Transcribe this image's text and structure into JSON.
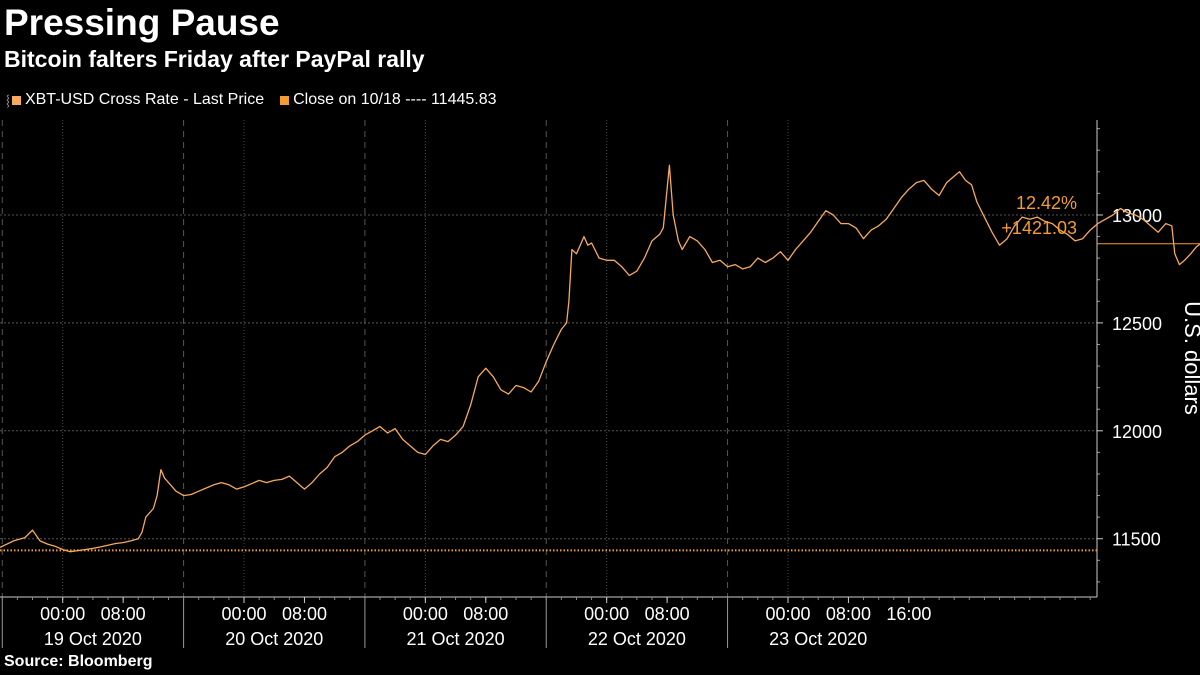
{
  "header": {
    "title": "Pressing Pause",
    "subtitle": "Bitcoin falters Friday after PayPal rally"
  },
  "legend": {
    "items": [
      {
        "label": "XBT-USD Cross Rate - Last Price",
        "color": "#f7a95c"
      },
      {
        "label": "Close on 10/18 ---- 11445.83",
        "color": "#f39c32"
      }
    ]
  },
  "source": "Source: Bloomberg",
  "chart_data": {
    "type": "line",
    "ylabel": "U.S. dollars",
    "ylim": [
      11230,
      13440
    ],
    "yticks": [
      11500,
      12000,
      12500,
      13000
    ],
    "xlim_hours": [
      -8.3,
      136.9
    ],
    "x_ticks": [
      {
        "hour": 0,
        "label": "00:00"
      },
      {
        "hour": 8,
        "label": "08:00"
      },
      {
        "hour": 24,
        "label": "00:00"
      },
      {
        "hour": 32,
        "label": "08:00"
      },
      {
        "hour": 48,
        "label": "00:00"
      },
      {
        "hour": 56,
        "label": "08:00"
      },
      {
        "hour": 72,
        "label": "00:00"
      },
      {
        "hour": 80,
        "label": "08:00"
      },
      {
        "hour": 96,
        "label": "00:00"
      },
      {
        "hour": 104,
        "label": "08:00"
      },
      {
        "hour": 112,
        "label": "16:00"
      }
    ],
    "day_labels": [
      {
        "hour": 4,
        "label": "19 Oct 2020"
      },
      {
        "hour": 28,
        "label": "20 Oct 2020"
      },
      {
        "hour": 52,
        "label": "21 Oct 2020"
      },
      {
        "hour": 76,
        "label": "22 Oct 2020"
      },
      {
        "hour": 100,
        "label": "23 Oct 2020"
      }
    ],
    "day_separators_hours": [
      -8,
      16,
      40,
      64,
      88
    ],
    "reference_line": {
      "label": "Close on 10/18",
      "value": 11445.83,
      "color": "#f39c32"
    },
    "annotation": {
      "pct": "12.42%",
      "change": "+1421.03",
      "last_value": 12866.86,
      "color": "#f39c32"
    },
    "series": [
      {
        "name": "XBT-USD Cross Rate - Last Price",
        "color": "#f7a95c",
        "points": [
          [
            -8.3,
            11460
          ],
          [
            -6.5,
            11490
          ],
          [
            -5,
            11505
          ],
          [
            -4,
            11540
          ],
          [
            -3,
            11490
          ],
          [
            -2,
            11475
          ],
          [
            -1,
            11465
          ],
          [
            0,
            11450
          ],
          [
            1,
            11440
          ],
          [
            2,
            11445
          ],
          [
            3,
            11450
          ],
          [
            4,
            11455
          ],
          [
            5,
            11462
          ],
          [
            6,
            11470
          ],
          [
            7,
            11478
          ],
          [
            8,
            11482
          ],
          [
            9,
            11490
          ],
          [
            10,
            11500
          ],
          [
            10.5,
            11530
          ],
          [
            11,
            11600
          ],
          [
            11.5,
            11620
          ],
          [
            12,
            11640
          ],
          [
            12.5,
            11700
          ],
          [
            13,
            11820
          ],
          [
            13.5,
            11780
          ],
          [
            14,
            11760
          ],
          [
            15,
            11720
          ],
          [
            16,
            11700
          ],
          [
            17,
            11705
          ],
          [
            18,
            11720
          ],
          [
            19,
            11735
          ],
          [
            20,
            11750
          ],
          [
            21,
            11760
          ],
          [
            22,
            11750
          ],
          [
            23,
            11730
          ],
          [
            24,
            11740
          ],
          [
            25,
            11755
          ],
          [
            26,
            11770
          ],
          [
            27,
            11760
          ],
          [
            28,
            11770
          ],
          [
            29,
            11775
          ],
          [
            30,
            11790
          ],
          [
            31,
            11760
          ],
          [
            32,
            11730
          ],
          [
            33,
            11760
          ],
          [
            34,
            11800
          ],
          [
            35,
            11830
          ],
          [
            36,
            11880
          ],
          [
            37,
            11900
          ],
          [
            38,
            11930
          ],
          [
            39,
            11950
          ],
          [
            40,
            11980
          ],
          [
            41,
            12000
          ],
          [
            42,
            12020
          ],
          [
            43,
            11990
          ],
          [
            44,
            12010
          ],
          [
            45,
            11960
          ],
          [
            46,
            11930
          ],
          [
            47,
            11900
          ],
          [
            48,
            11890
          ],
          [
            49,
            11930
          ],
          [
            50,
            11960
          ],
          [
            51,
            11950
          ],
          [
            52,
            11980
          ],
          [
            53,
            12020
          ],
          [
            54,
            12120
          ],
          [
            55,
            12250
          ],
          [
            56,
            12290
          ],
          [
            57,
            12250
          ],
          [
            58,
            12190
          ],
          [
            59,
            12170
          ],
          [
            60,
            12210
          ],
          [
            61,
            12200
          ],
          [
            62,
            12180
          ],
          [
            63,
            12230
          ],
          [
            64,
            12320
          ],
          [
            65,
            12400
          ],
          [
            66,
            12470
          ],
          [
            66.7,
            12500
          ],
          [
            67,
            12600
          ],
          [
            67.4,
            12840
          ],
          [
            68,
            12820
          ],
          [
            68.5,
            12860
          ],
          [
            69,
            12900
          ],
          [
            69.5,
            12860
          ],
          [
            70,
            12870
          ],
          [
            71,
            12800
          ],
          [
            72,
            12790
          ],
          [
            73,
            12790
          ],
          [
            74,
            12760
          ],
          [
            75,
            12720
          ],
          [
            76,
            12740
          ],
          [
            77,
            12800
          ],
          [
            78,
            12880
          ],
          [
            79,
            12910
          ],
          [
            79.5,
            12940
          ],
          [
            80.3,
            13230
          ],
          [
            80.8,
            13000
          ],
          [
            81.5,
            12880
          ],
          [
            82,
            12840
          ],
          [
            83,
            12900
          ],
          [
            84,
            12880
          ],
          [
            85,
            12840
          ],
          [
            86,
            12780
          ],
          [
            87,
            12790
          ],
          [
            88,
            12760
          ],
          [
            89,
            12770
          ],
          [
            90,
            12750
          ],
          [
            91,
            12760
          ],
          [
            92,
            12800
          ],
          [
            93,
            12780
          ],
          [
            94,
            12800
          ],
          [
            95,
            12830
          ],
          [
            96,
            12790
          ],
          [
            97,
            12840
          ],
          [
            98,
            12880
          ],
          [
            99,
            12920
          ],
          [
            100,
            12970
          ],
          [
            101,
            13020
          ],
          [
            102,
            13000
          ],
          [
            103,
            12960
          ],
          [
            104,
            12960
          ],
          [
            105,
            12940
          ],
          [
            106,
            12890
          ],
          [
            107,
            12930
          ],
          [
            108,
            12950
          ],
          [
            109,
            12980
          ],
          [
            110,
            13030
          ],
          [
            111,
            13080
          ],
          [
            112,
            13120
          ],
          [
            113,
            13150
          ],
          [
            114,
            13160
          ],
          [
            115,
            13120
          ],
          [
            116,
            13090
          ],
          [
            117,
            13150
          ],
          [
            118,
            13180
          ],
          [
            118.7,
            13200
          ],
          [
            119.5,
            13160
          ],
          [
            120.3,
            13140
          ],
          [
            121,
            13060
          ],
          [
            122,
            12990
          ],
          [
            123,
            12920
          ],
          [
            124,
            12860
          ],
          [
            125,
            12890
          ],
          [
            126,
            12950
          ],
          [
            127,
            12990
          ],
          [
            128,
            12980
          ],
          [
            129,
            12990
          ],
          [
            130,
            12970
          ],
          [
            131,
            12960
          ],
          [
            132,
            12930
          ],
          [
            133,
            12910
          ],
          [
            134,
            12880
          ],
          [
            135,
            12890
          ],
          [
            136,
            12930
          ],
          [
            137,
            12960
          ],
          [
            138,
            12980
          ],
          [
            139,
            13000
          ],
          [
            140,
            13030
          ],
          [
            141,
            13010
          ],
          [
            142,
            13000
          ],
          [
            143,
            12980
          ],
          [
            144,
            12950
          ],
          [
            145,
            12920
          ],
          [
            146,
            12960
          ],
          [
            146.8,
            12950
          ],
          [
            147.2,
            12820
          ],
          [
            147.8,
            12770
          ],
          [
            148.5,
            12790
          ],
          [
            149.3,
            12820
          ],
          [
            150,
            12850
          ],
          [
            150.6,
            12867
          ]
        ]
      }
    ]
  }
}
